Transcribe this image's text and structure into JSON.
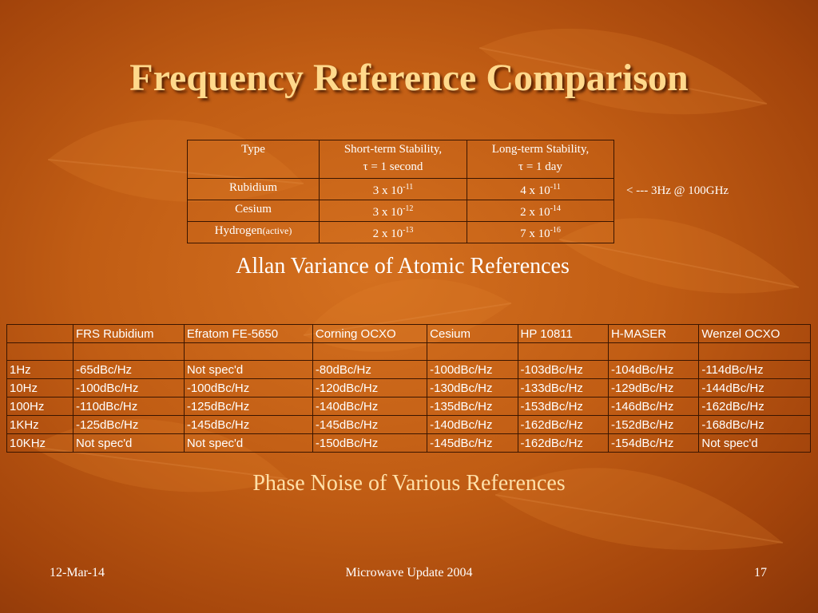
{
  "title": "Frequency Reference Comparison",
  "stability_table": {
    "header": {
      "type": "Type",
      "short_line1": "Short-term Stability,",
      "short_line2": "τ = 1 second",
      "long_line1": "Long-term Stability,",
      "long_line2": "τ = 1 day"
    },
    "rows": [
      {
        "type": "Rubidium",
        "type_suffix": "",
        "short_base": "3 x 10",
        "short_exp": "-11",
        "long_base": "4 x 10",
        "long_exp": "-11"
      },
      {
        "type": "Cesium",
        "type_suffix": "",
        "short_base": "3 x 10",
        "short_exp": "-12",
        "long_base": "2 x 10",
        "long_exp": "-14"
      },
      {
        "type": "Hydrogen",
        "type_suffix": "(active)",
        "short_base": "2 x 10",
        "short_exp": "-13",
        "long_base": "7 x 10",
        "long_exp": "-16"
      }
    ]
  },
  "note": "< --- 3Hz @ 100GHz",
  "caption1": "Allan Variance of Atomic References",
  "phase_table": {
    "headers": [
      "",
      "FRS Rubidium",
      "Efratom FE-5650",
      "Corning OCXO",
      "Cesium",
      "HP 10811",
      "H-MASER",
      "Wenzel OCXO"
    ],
    "rows": [
      [
        "1Hz",
        " -65dBc/Hz",
        "Not spec'd",
        "  -80dBc/Hz",
        " -100dBc/Hz",
        " -103dBc/Hz",
        " -104dBc/Hz",
        " -114dBc/Hz"
      ],
      [
        "10Hz",
        " -100dBc/Hz",
        " -100dBc/Hz",
        " -120dBc/Hz",
        " -130dBc/Hz",
        " -133dBc/Hz",
        " -129dBc/Hz",
        " -144dBc/Hz"
      ],
      [
        "100Hz",
        " -110dBc/Hz",
        " -125dBc/Hz",
        " -140dBc/Hz",
        " -135dBc/Hz",
        " -153dBc/Hz",
        " -146dBc/Hz",
        " -162dBc/Hz"
      ],
      [
        "1KHz",
        " -125dBc/Hz",
        " -145dBc/Hz",
        " -145dBc/Hz",
        " -140dBc/Hz",
        " -162dBc/Hz",
        " -152dBc/Hz",
        " -168dBc/Hz"
      ],
      [
        "10KHz",
        "Not spec'd",
        "Not spec'd",
        " -150dBc/Hz",
        " -145dBc/Hz",
        " -162dBc/Hz",
        " -154dBc/Hz",
        "Not spec'd"
      ]
    ]
  },
  "caption2": "Phase Noise of Various References",
  "footer": {
    "date": "12-Mar-14",
    "center": "Microwave Update 2004",
    "page": "17"
  }
}
